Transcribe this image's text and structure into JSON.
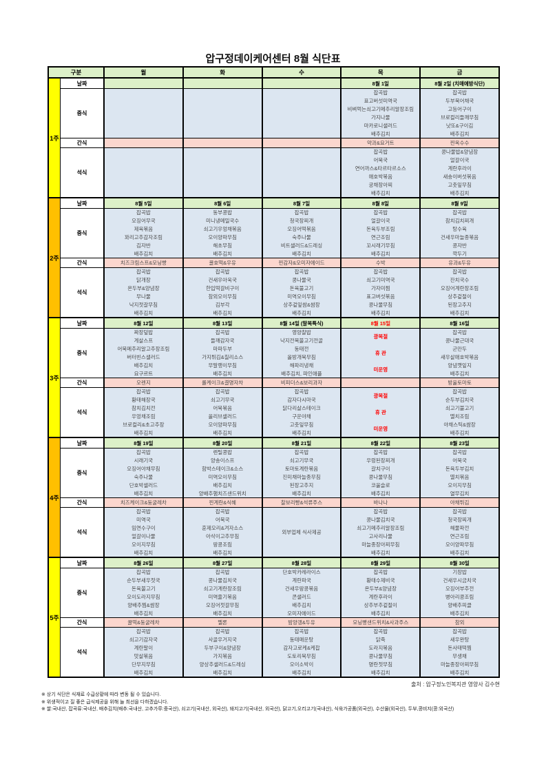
{
  "title": "압구정데이케어센터 8월 식단표",
  "colors": {
    "header_green": "#DCF0C8",
    "meal_blue": "#DCE6F1",
    "snack_pink": "#FBD6CE",
    "week_yellow": "#FFFF00",
    "week_orange": "#FFC000",
    "holiday_red": "#FF0000"
  },
  "header": {
    "corner": "구분",
    "days": [
      "월",
      "화",
      "수",
      "목",
      "금"
    ]
  },
  "row_labels": {
    "date": "날짜",
    "lunch": "중식",
    "snack": "간식",
    "dinner": "석식"
  },
  "weeks": [
    {
      "label": "1주",
      "band": "#FFFF00",
      "dates": [
        "",
        "",
        "",
        "8월 1일",
        "8월 2일 (치매예방식단)"
      ],
      "red_cols": [],
      "lunch": [
        [],
        [],
        [],
        [
          "잡곡밥",
          "표고버섯미역국",
          "비벼먹는쇠고기메추리알장조림",
          "가지나물",
          "마카로니샐러드",
          "배추김치"
        ],
        [
          "잡곡밥",
          "두부북어채국",
          "고등어구이",
          "브로컬리들깨무침",
          "낫또&구이김",
          "배추김치"
        ]
      ],
      "snack": [
        "",
        "",
        "",
        "약과&요거트",
        "찐옥수수"
      ],
      "dinner": [
        [],
        [],
        [],
        [
          "잡곡밥",
          "어묵국",
          "연어까스&타르타르소스",
          "애호박볶음",
          "궁채장아찌",
          "배추김치"
        ],
        [
          "콩나물밥&양념장",
          "얼갈이국",
          "계란후라이",
          "새송이버섯볶음",
          "고춧잎무침",
          "배추김치"
        ]
      ]
    },
    {
      "label": "2주",
      "band": "#FFC000",
      "dates": [
        "8월 5일",
        "8월 6일",
        "8월 7일",
        "8월 8일",
        "8월 9일"
      ],
      "red_cols": [],
      "lunch": [
        [
          "잡곡밥",
          "오징어무국",
          "제육볶음",
          "꽈리고추감자조림",
          "김자반",
          "배추김치"
        ],
        [
          "동부콩밥",
          "미니냉메밀국수",
          "쇠고기우엉채볶음",
          "오이양파무침",
          "해초무침",
          "배추김치"
        ],
        [
          "잡곡밥",
          "청국장찌개",
          "오징어떡볶음",
          "숙주나물",
          "비트샐러드&드레싱",
          "배추김치"
        ],
        [
          "잡곡밥",
          "얼갈이국",
          "돈육두부조림",
          "연근조림",
          "꼬시래기무침",
          "배추김치"
        ],
        [
          "잡곡밥",
          "참치김치찌개",
          "탕수육",
          "건새우마늘종볶음",
          "콩자반",
          "깍두기"
        ]
      ],
      "snack": [
        "치즈크림스프&모닝빵",
        "꿀호떡&우유",
        "찐감자&오미자에이드",
        "수박",
        "유과&두유"
      ],
      "dinner": [
        [
          "잡곡밥",
          "닭개장",
          "온두부&양념장",
          "무나물",
          "낙지젓갈무침",
          "배추김치"
        ],
        [
          "잡곡밥",
          "건새우아욱국",
          "한입떡갈비구이",
          "참외오이무침",
          "김부각",
          "배추김치"
        ],
        [
          "잡곡밥",
          "콩나물국",
          "돈육불고기",
          "미역오이무침",
          "상추겉잎쌈&쌈장",
          "배추김치"
        ],
        [
          "잡곡밥",
          "쇠고기미역국",
          "가자미찜",
          "표고버섯볶음",
          "콩나물무침",
          "배추김치"
        ],
        [
          "잡곡밥",
          "잔치국수",
          "오징어계란장조림",
          "상추겉절이",
          "된장고추지",
          "배추김치"
        ]
      ]
    },
    {
      "label": "3주",
      "band": "#FFFF00",
      "dates": [
        "8월 12일",
        "8월 13일",
        "8월 14일 (말복특식)",
        "8월 15일",
        "8월 16일"
      ],
      "red_cols": [
        3
      ],
      "lunch": [
        [
          "짜장덮밥",
          "게살스프",
          "어묵메추리알고추장조림",
          "버터빈스샐러드",
          "배추김치",
          "요구르트"
        ],
        [
          "잡곡밥",
          "들깨감자국",
          "마파두부",
          "가지튀김&칠리소스",
          "무말랭이무침",
          "배추김치"
        ],
        [
          "영양찰밥",
          "낙지전복불고기전골",
          "동태전",
          "올방개묵무침",
          "해파리냉채",
          "배추김치, 파인애플"
        ],
        [
          "광복절",
          "휴 관",
          "미운영"
        ],
        [
          "잡곡밥",
          "콩나물근대국",
          "군만두",
          "새우살애호박볶음",
          "양념깻잎지",
          "배추김치"
        ]
      ],
      "snack": [
        "오렌지",
        "롤케이크&결명자차",
        "비피더스&보리과자",
        "",
        "방울토마토"
      ],
      "dinner": [
        [
          "잡곡밥",
          "황태해장국",
          "참치김치전",
          "우엉채조림",
          "브로컬리&초고추장",
          "배추김치"
        ],
        [
          "잡곡밥",
          "쇠고기무국",
          "어묵볶음",
          "올리브샐러드",
          "오이양파무침",
          "배추김치"
        ],
        [
          "잡곡밥",
          "감자다시마국",
          "닭다리살스테이크",
          "구운야채",
          "고춧잎무침",
          "배추김치"
        ],
        [
          "광복절",
          "휴 관",
          "미운영"
        ],
        [
          "잡곡밥",
          "순두부김치국",
          "쇠고기불고기",
          "멸치조림",
          "야채스틱&쌈장",
          "배추김치"
        ]
      ]
    },
    {
      "label": "4주",
      "band": "#FFC000",
      "dates": [
        "8월 19일",
        "8월 20일",
        "8월 21일",
        "8월 22일",
        "8월 23일"
      ],
      "red_cols": [],
      "lunch": [
        [
          "잡곡밥",
          "시래기국",
          "오징어야채무침",
          "숙주나물",
          "단호박샐러드",
          "배추김치"
        ],
        [
          "렌틸콩밥",
          "양송이스프",
          "함박스테이크&소스",
          "미역오이무침",
          "배추김치",
          "양배추햄치즈샌드위치"
        ],
        [
          "잡곡밥",
          "쇠고기무국",
          "토마토계란볶음",
          "진미채마늘종무침",
          "된장고추지",
          "배추김치"
        ],
        [
          "잡곡밥",
          "우렁된장찌개",
          "갈치구이",
          "콩나물무침",
          "코울슬로",
          "배추김치"
        ],
        [
          "잡곡밥",
          "어묵국",
          "돈육두부김치",
          "멸치볶음",
          "오이지무침",
          "열무김치"
        ]
      ],
      "snack": [
        "치즈케이크&둥굴레차",
        "찐계란&식혜",
        "찰보리빵&석류주스",
        "바나나",
        "야채튀김"
      ],
      "dinner": [
        [
          "잡곡밥",
          "미역국",
          "임연수구이",
          "얼갈이나물",
          "오이지무침",
          "배추김치"
        ],
        [
          "잡곡밥",
          "어묵국",
          "훈제오리&겨자소스",
          "아삭이고추무침",
          "땅콩조림",
          "배추김치"
        ],
        [
          "외부업체 식사제공"
        ],
        [
          "잡곡밥",
          "콩나물김치국",
          "쇠고기메추리알장조림",
          "고사리나물",
          "마늘종장아찌무침",
          "배추김치"
        ],
        [
          "잡곡밥",
          "청국장찌개",
          "해물파전",
          "연근조림",
          "오이양파무침",
          "배추김치"
        ]
      ]
    },
    {
      "label": "5주",
      "band": "#FFFF00",
      "dates": [
        "8월 26일",
        "8월 27일",
        "8월 28일",
        "8월 29일",
        "8월 30일"
      ],
      "red_cols": [],
      "lunch": [
        [
          "잡곡밥",
          "순두부새우젓국",
          "돈육불고기",
          "오이도라지무침",
          "양배추찜&쌈장",
          "배추김치"
        ],
        [
          "잡곡밥",
          "콩나물김치국",
          "쇠고기계란장조림",
          "미역줄기볶음",
          "오징어젓갈무침",
          "배추김치"
        ],
        [
          "단호박카레라이스",
          "계란파국",
          "건새우땅콩볶음",
          "콘샐러드",
          "배추김치",
          "오미자에이드"
        ],
        [
          "잡곡밥",
          "황태수제비국",
          "온두부&양념장",
          "계란후라이",
          "상추부추겉절이",
          "배추김치"
        ],
        [
          "기장밥",
          "건새우시금치국",
          "오징어부추전",
          "병아리콩조림",
          "양배추피클",
          "배추김치"
        ]
      ],
      "snack": [
        "꿀떡&둥굴레차",
        "멜론",
        "밤양갱&두유",
        "모닝빵샌드위치&사과주스",
        "참외"
      ],
      "dinner": [
        [
          "잡곡밥",
          "쇠고기감자국",
          "계란말이",
          "맛살볶음",
          "단무지무침",
          "배추김치"
        ],
        [
          "잡곡밥",
          "사골우거지국",
          "두부구이&양념장",
          "가지볶음",
          "양상추샐러드&드레싱",
          "배추김치"
        ],
        [
          "잡곡밥",
          "동태매운탕",
          "감자고로케&케찹",
          "도토리묵무침",
          "오이소박이",
          "배추김치"
        ],
        [
          "잡곡밥",
          "닭죽",
          "도라지볶음",
          "콩나물무침",
          "명란젓무침",
          "배추김치"
        ],
        [
          "잡곡밥",
          "새우완탕",
          "돈사태떡찜",
          "무생채",
          "마늘종장아찌무침",
          "배추김치"
        ]
      ]
    }
  ],
  "footer": {
    "source": "출처 : 압구정노인복지관 영양사 김수현",
    "notes": [
      "※ 상기 식단은 식재료 수급상황에 따라 변동 될 수 있습니다.",
      "※ 위생적이고 질 좋은 급식제공을 위해 늘 최선을 다하겠습니다.",
      "※ 쌀:국내산, 잡곡류:국내산, 배추김치(배추:국내산, 고추가루:중국산), 쇠고기(국내산, 외국산), 돼지고기(국내산, 외국산), 닭고기,오리고기(국내산), 식육가공품(외국산), 수산물(외국산), 두부,콩비지(콩:외국산)"
    ]
  }
}
